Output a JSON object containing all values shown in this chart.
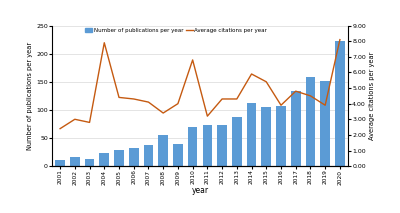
{
  "years": [
    2001,
    2002,
    2003,
    2004,
    2005,
    2006,
    2007,
    2008,
    2009,
    2010,
    2011,
    2012,
    2013,
    2014,
    2015,
    2016,
    2017,
    2018,
    2019,
    2020
  ],
  "publications": [
    11,
    17,
    13,
    23,
    29,
    33,
    37,
    55,
    40,
    70,
    73,
    74,
    88,
    113,
    106,
    107,
    133,
    158,
    152,
    222
  ],
  "avg_citations": [
    2.4,
    3.0,
    2.8,
    7.9,
    4.4,
    4.3,
    4.1,
    3.4,
    4.0,
    6.8,
    3.2,
    4.3,
    4.3,
    5.9,
    5.4,
    3.9,
    4.8,
    4.5,
    3.9,
    8.1
  ],
  "bar_color": "#5b9bd5",
  "line_color": "#c55a11",
  "ylabel_left": "Number of publications per year",
  "ylabel_right": "Average citations per year",
  "xlabel": "year",
  "ylim_left": [
    0,
    250
  ],
  "ylim_right": [
    0.0,
    9.0
  ],
  "yticks_left": [
    0,
    50,
    100,
    150,
    200,
    250
  ],
  "yticks_right": [
    0.0,
    1.0,
    2.0,
    3.0,
    4.0,
    5.0,
    6.0,
    7.0,
    8.0,
    9.0
  ],
  "legend_bar": "Number of publications per year",
  "legend_line": "Average citations per year",
  "background_color": "#ffffff",
  "grid_color": "#d9d9d9"
}
